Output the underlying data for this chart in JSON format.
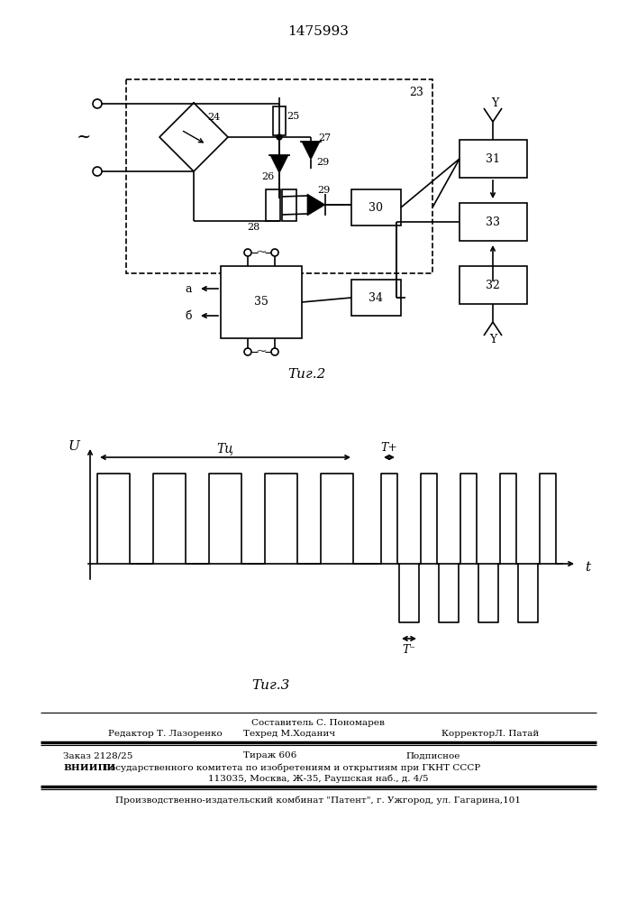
{
  "patent_number": "1475993",
  "fig2_caption": "Τиг.2",
  "fig3_caption": "Τиг.3",
  "footer": {
    "composer": "Составитель С. Пономарев",
    "editor": "Редактор Т. Лазоренко",
    "techred": "Техред М.Ходанич",
    "corrector": "КорректорЛ. Патай",
    "order": "Заказ 2128/25",
    "edition": "Тираж 606",
    "subscription": "Подписное",
    "vniippi_bold": "ВНИИПИ",
    "vniippi_rest": " Государственного комитета по изобретениям и открытиям при ГКНТ СССР",
    "address": "113035, Москва, Ж-35, Раушская наб., д. 4/5",
    "publisher": "Производственно-издательский комбинат \"Патент\", г. Ужгород, ул. Гагарина,101"
  },
  "bg_color": "#ffffff",
  "lc": "#000000"
}
